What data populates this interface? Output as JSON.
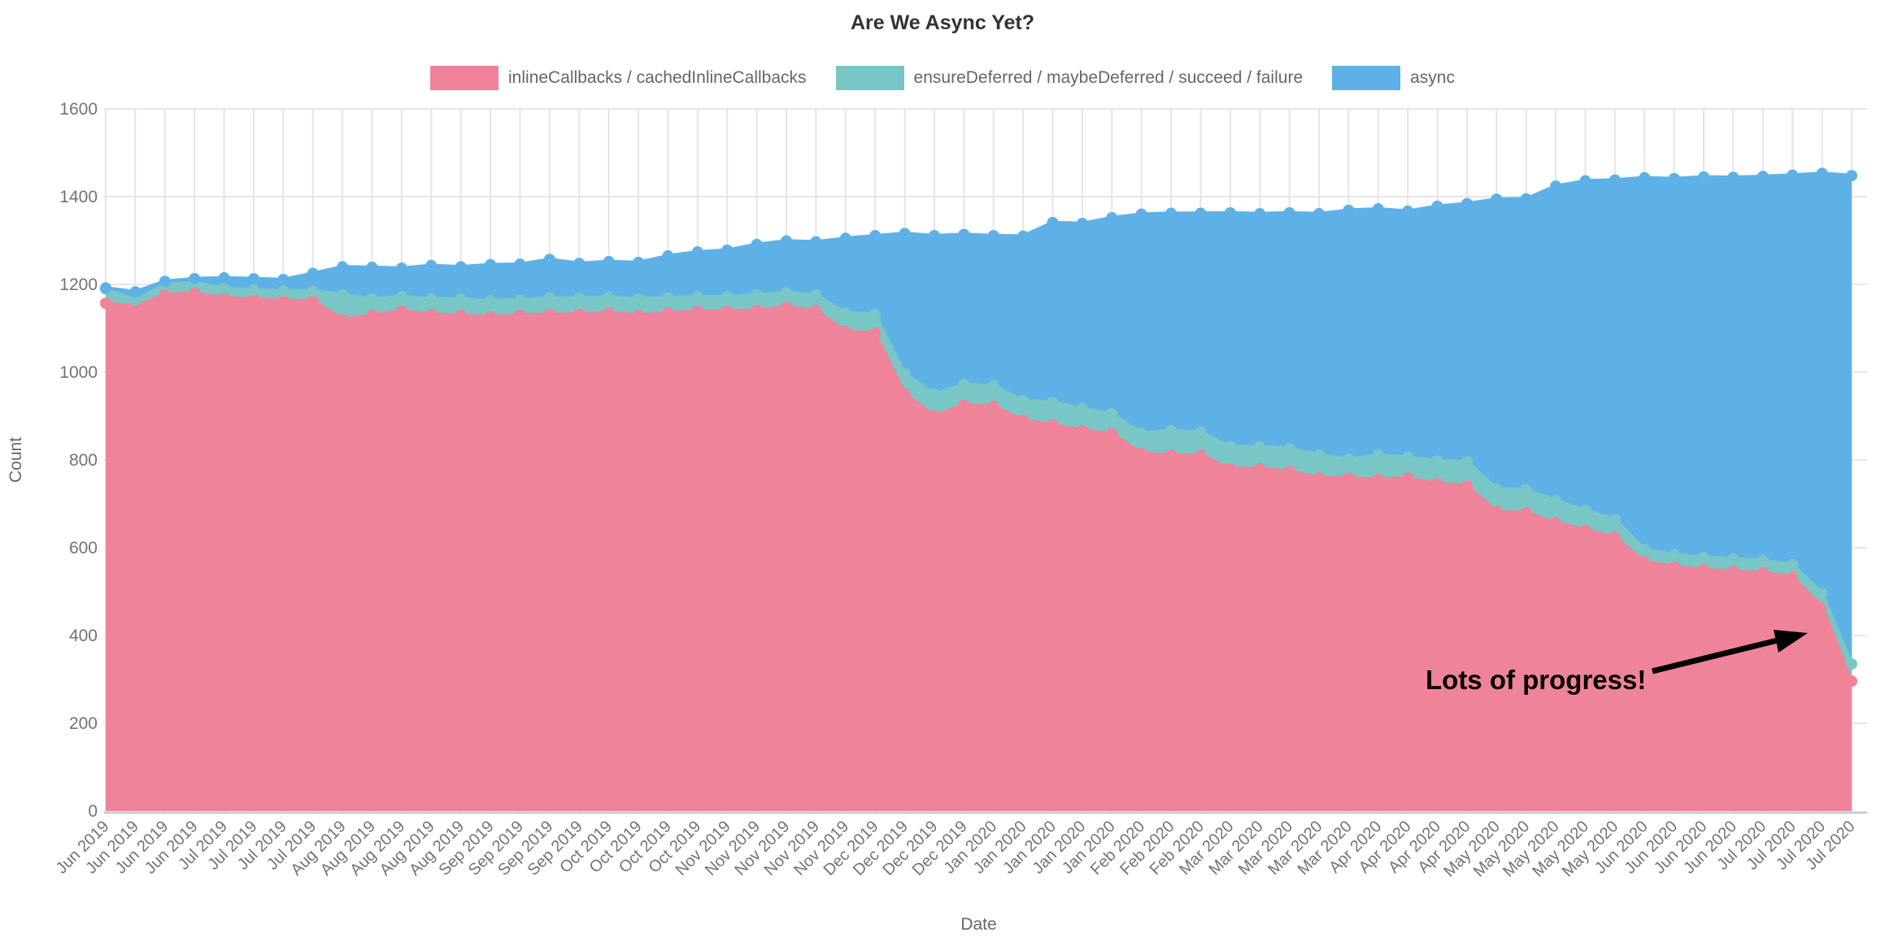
{
  "page_title": "Are We Async Yet?",
  "chart_data": {
    "type": "area",
    "stacked": true,
    "title": "Are We Async Yet?",
    "xlabel": "Date",
    "ylabel": "Count",
    "ylim": [
      0,
      1600
    ],
    "ytick_step": 200,
    "grid": true,
    "legend_position": "top",
    "background": "#ffffff",
    "grid_color": "#e5e5e5",
    "axis_line_color": "#cbcbcb",
    "tick_label_color": "#737373",
    "axis_title_color": "#666666",
    "categories": [
      "Jun 2019",
      "Jun 2019",
      "Jun 2019",
      "Jun 2019",
      "Jul 2019",
      "Jul 2019",
      "Jul 2019",
      "Jul 2019",
      "Aug 2019",
      "Aug 2019",
      "Aug 2019",
      "Aug 2019",
      "Aug 2019",
      "Sep 2019",
      "Sep 2019",
      "Sep 2019",
      "Sep 2019",
      "Oct 2019",
      "Oct 2019",
      "Oct 2019",
      "Oct 2019",
      "Nov 2019",
      "Nov 2019",
      "Nov 2019",
      "Nov 2019",
      "Nov 2019",
      "Dec 2019",
      "Dec 2019",
      "Dec 2019",
      "Dec 2019",
      "Jan 2020",
      "Jan 2020",
      "Jan 2020",
      "Jan 2020",
      "Jan 2020",
      "Feb 2020",
      "Feb 2020",
      "Feb 2020",
      "Mar 2020",
      "Mar 2020",
      "Mar 2020",
      "Mar 2020",
      "Mar 2020",
      "Apr 2020",
      "Apr 2020",
      "Apr 2020",
      "Apr 2020",
      "May 2020",
      "May 2020",
      "May 2020",
      "May 2020",
      "May 2020",
      "Jun 2020",
      "Jun 2020",
      "Jun 2020",
      "Jun 2020",
      "Jul 2020",
      "Jul 2020",
      "Jul 2020",
      "Jul 2020"
    ],
    "series": [
      {
        "name": "inlineCallbacks / cachedInlineCallbacks",
        "color": "#ef8399",
        "values": [
          1157,
          1150,
          1176,
          1180,
          1169,
          1167,
          1163,
          1163,
          1120,
          1130,
          1139,
          1132,
          1130,
          1126,
          1130,
          1132,
          1132,
          1135,
          1130,
          1135,
          1139,
          1139,
          1141,
          1148,
          1140,
          1093,
          1089,
          950,
          900,
          925,
          922,
          890,
          880,
          867,
          860,
          815,
          811,
          811,
          780,
          780,
          774,
          759,
          759,
          756,
          759,
          746,
          741,
          682,
          680,
          657,
          640,
          624,
          568,
          556,
          550,
          546,
          543,
          533,
          465,
          296
        ]
      },
      {
        "name": "ensureDeferred / maybeDeferred / succeed / failure",
        "color": "#78c6c5",
        "values": [
          33,
          14,
          24,
          24,
          22,
          20,
          22,
          22,
          56,
          37,
          33,
          35,
          37,
          37,
          34,
          37,
          37,
          36,
          37,
          35,
          33,
          33,
          35,
          33,
          36,
          42,
          43,
          46,
          50,
          47,
          47,
          45,
          51,
          50,
          45,
          46,
          56,
          52,
          50,
          50,
          52,
          52,
          43,
          55,
          47,
          52,
          55,
          52,
          52,
          50,
          45,
          40,
          28,
          28,
          28,
          28,
          28,
          28,
          31,
          39
        ]
      },
      {
        "name": "async",
        "color": "#5eb1e6",
        "values": [
          2,
          19,
          7,
          9,
          24,
          26,
          26,
          40,
          64,
          72,
          65,
          76,
          73,
          82,
          82,
          88,
          79,
          81,
          83,
          95,
          102,
          106,
          115,
          118,
          121,
          170,
          179,
          320,
          361,
          342,
          342,
          375,
          410,
          422,
          447,
          499,
          495,
          499,
          533,
          531,
          537,
          550,
          567,
          561,
          561,
          580,
          588,
          660,
          663,
          717,
          751,
          774,
          847,
          857,
          867,
          870,
          875,
          888,
          957,
          1113
        ]
      }
    ],
    "annotation": {
      "text": "Lots of progress!"
    }
  },
  "axes": {
    "x_title": "Date",
    "y_title": "Count"
  }
}
